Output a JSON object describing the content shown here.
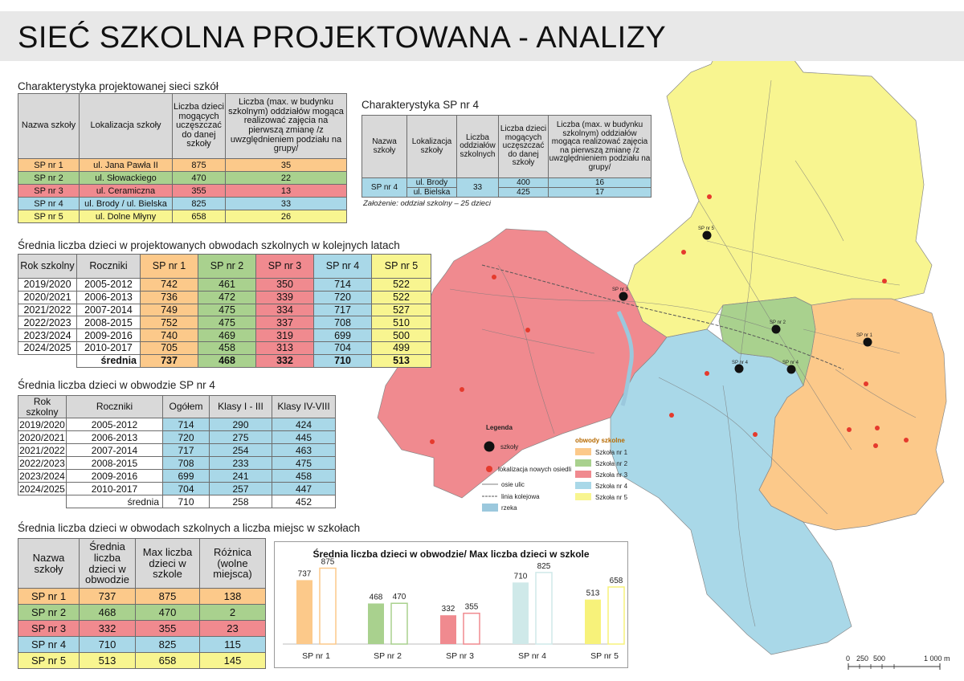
{
  "title": "SIEĆ SZKOLNA PROJEKTOWANA - ANALIZY",
  "colors": {
    "sp1": "#fcc98a",
    "sp2": "#a9d18e",
    "sp3": "#f08a8f",
    "sp4": "#a9d8e8",
    "sp5": "#f8f590",
    "header": "#d9d9d9",
    "river": "#9bc8dd"
  },
  "table1": {
    "title": "Charakterystyka projektowanej sieci szkół",
    "headers": [
      "Nazwa szkoły",
      "Lokalizacja szkoły",
      "Liczba dzieci mogących uczęszczać do danej szkoły",
      "Liczba (max. w budynku szkolnym) oddziałów mogąca realizować zajęcia na pierwszą zmianę /z uwzględnieniem podziału na grupy/"
    ],
    "rows": [
      [
        "SP nr 1",
        "ul. Jana Pawła II",
        "875",
        "35"
      ],
      [
        "SP nr 2",
        "ul. Słowackiego",
        "470",
        "22"
      ],
      [
        "SP nr 3",
        "ul. Ceramiczna",
        "355",
        "13"
      ],
      [
        "SP nr 4",
        "ul. Brody / ul. Bielska",
        "825",
        "33"
      ],
      [
        "SP nr 5",
        "ul. Dolne Młyny",
        "658",
        "26"
      ]
    ]
  },
  "table2": {
    "title": "Charakterystyka SP nr 4",
    "headers": [
      "Nazwa szkoły",
      "Lokalizacja szkoły",
      "Liczba oddziałów szkolnych",
      "Liczba dzieci mogących uczęszczać do danej szkoły",
      "Liczba (max. w budynku szkolnym) oddziałów mogąca realizować zajęcia na pierwszą zmianę /z uwzględnieniem podziału na grupy/"
    ],
    "school": "SP nr 4",
    "locations": [
      "ul. Brody",
      "ul. Bielska"
    ],
    "classes": "33",
    "children": [
      "400",
      "425"
    ],
    "max": [
      "16",
      "17"
    ],
    "note": "Założenie: oddział szkolny – 25 dzieci"
  },
  "table3": {
    "title": "Średnia liczba dzieci w projektowanych obwodach szkolnych w kolejnych latach",
    "headers": [
      "Rok szkolny",
      "Roczniki",
      "SP nr 1",
      "SP nr 2",
      "SP nr 3",
      "SP nr 4",
      "SP nr 5"
    ],
    "rows": [
      [
        "2019/2020",
        "2005-2012",
        "742",
        "461",
        "350",
        "714",
        "522"
      ],
      [
        "2020/2021",
        "2006-2013",
        "736",
        "472",
        "339",
        "720",
        "522"
      ],
      [
        "2021/2022",
        "2007-2014",
        "749",
        "475",
        "334",
        "717",
        "527"
      ],
      [
        "2022/2023",
        "2008-2015",
        "752",
        "475",
        "337",
        "708",
        "510"
      ],
      [
        "2023/2024",
        "2009-2016",
        "740",
        "469",
        "319",
        "699",
        "500"
      ],
      [
        "2024/2025",
        "2010-2017",
        "705",
        "458",
        "313",
        "704",
        "499"
      ]
    ],
    "avg_label": "średnia",
    "avg": [
      "737",
      "468",
      "332",
      "710",
      "513"
    ]
  },
  "table4": {
    "title": "Średnia liczba dzieci w obwodzie SP nr 4",
    "headers": [
      "Rok szkolny",
      "Roczniki",
      "Ogółem",
      "Klasy I - III",
      "Klasy IV-VIII"
    ],
    "rows": [
      [
        "2019/2020",
        "2005-2012",
        "714",
        "290",
        "424"
      ],
      [
        "2020/2021",
        "2006-2013",
        "720",
        "275",
        "445"
      ],
      [
        "2021/2022",
        "2007-2014",
        "717",
        "254",
        "463"
      ],
      [
        "2022/2023",
        "2008-2015",
        "708",
        "233",
        "475"
      ],
      [
        "2023/2024",
        "2009-2016",
        "699",
        "241",
        "458"
      ],
      [
        "2024/2025",
        "2010-2017",
        "704",
        "257",
        "447"
      ]
    ],
    "avg_label": "średnia",
    "avg": [
      "710",
      "258",
      "452"
    ]
  },
  "table5": {
    "title": "Średnia liczba dzieci w obwodach szkolnych a liczba miejsc w szkołach",
    "headers": [
      "Nazwa szkoły",
      "Średnia liczba dzieci w obwodzie",
      "Max liczba dzieci w szkole",
      "Różnica (wolne miejsca)"
    ],
    "rows": [
      [
        "SP nr 1",
        "737",
        "875",
        "138"
      ],
      [
        "SP nr 2",
        "468",
        "470",
        "2"
      ],
      [
        "SP nr 3",
        "332",
        "355",
        "23"
      ],
      [
        "SP nr 4",
        "710",
        "825",
        "115"
      ],
      [
        "SP nr 5",
        "513",
        "658",
        "145"
      ]
    ]
  },
  "chart_data": {
    "type": "bar",
    "title": "Średnia liczba dzieci w obwodzie/ Max liczba dzieci w szkole",
    "categories": [
      "SP nr 1",
      "SP nr 2",
      "SP nr 3",
      "SP nr 4",
      "SP nr 5"
    ],
    "series": [
      {
        "values": [
          737,
          468,
          332,
          710,
          513
        ]
      },
      {
        "values": [
          875,
          470,
          355,
          825,
          658
        ]
      }
    ],
    "colors": [
      "#fcc98a",
      "#a9d18e",
      "#f08a8f",
      "#cfe9e9",
      "#f7f27a"
    ],
    "ylim": [
      0,
      1000
    ],
    "grid": false
  },
  "legend": {
    "title": "Legenda",
    "items": [
      "szkoły",
      "lokalizacja nowych osiedli",
      "osie ulic",
      "linia kolejowa",
      "rzeka"
    ],
    "districts_title": "obwody szkolne",
    "districts": [
      "Szkoła nr 1",
      "Szkoła nr 2",
      "Szkoła nr 3",
      "Szkoła nr 4",
      "Szkoła nr 5"
    ]
  },
  "map": {
    "school_labels": [
      "SP nr 1",
      "SP nr 2",
      "SP nr 3",
      "SP nr 4",
      "SP nr 4",
      "SP nr 5"
    ],
    "scale_labels": [
      "0",
      "250",
      "500",
      "1 000 m"
    ]
  }
}
